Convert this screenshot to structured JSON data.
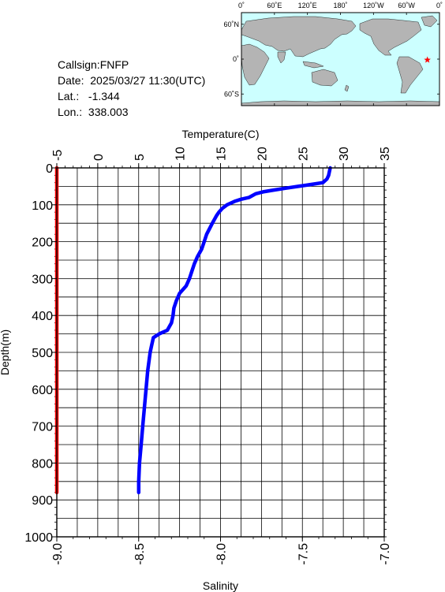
{
  "station": {
    "callsign_label": "Callsign:",
    "callsign": "FNFP",
    "date_label": "Date:",
    "date": "2025/03/27 11:30(UTC)",
    "lat_label": "Lat.:",
    "lat": "-1.344",
    "lon_label": "Lon.:",
    "lon": "338.003"
  },
  "map": {
    "lon_ticks": [
      "0˚",
      "60˚E",
      "120˚E",
      "180˚",
      "120˚W",
      "60˚W",
      "0˚"
    ],
    "lat_ticks": [
      "60˚N",
      "0˚",
      "60˚S"
    ],
    "ocean_color": "#ccffff",
    "land_color": "#b4b4b4",
    "marker_color": "#ff0000",
    "marker": {
      "lon": 338.003,
      "lat": -1.344
    }
  },
  "chart_data": {
    "type": "line",
    "xlabel_top": "Temperature(C)",
    "xlabel_bottom": "Salinity",
    "ylabel": "Depth(m)",
    "temp_lim": [
      -5,
      35
    ],
    "temp_ticks": [
      "-5",
      "0",
      "5",
      "10",
      "15",
      "20",
      "25",
      "30",
      "35"
    ],
    "sal_lim": [
      -9.0,
      -7.0
    ],
    "sal_ticks": [
      "-9.0",
      "-8.5",
      "-8.0",
      "-7.5",
      "-7.0"
    ],
    "depth_lim": [
      0,
      1000
    ],
    "depth_ticks": [
      "0",
      "100",
      "200",
      "300",
      "400",
      "500",
      "600",
      "700",
      "800",
      "900",
      "1000"
    ],
    "grid": true,
    "series": [
      {
        "quantity": "temperature",
        "color": "#0000ff",
        "depth": [
          0,
          10,
          20,
          30,
          40,
          45,
          50,
          55,
          60,
          65,
          70,
          80,
          85,
          90,
          100,
          110,
          120,
          130,
          150,
          180,
          200,
          220,
          240,
          260,
          280,
          300,
          320,
          340,
          360,
          380,
          400,
          420,
          440,
          450,
          460,
          480,
          500,
          550,
          600,
          650,
          700,
          750,
          800,
          850,
          880
        ],
        "temp": [
          28.4,
          28.3,
          28.2,
          28.0,
          27.5,
          26.0,
          24.5,
          23.0,
          21.5,
          20.2,
          19.3,
          18.5,
          17.5,
          16.8,
          15.8,
          15.2,
          14.8,
          14.5,
          14.0,
          13.3,
          13.0,
          12.7,
          12.2,
          11.8,
          11.5,
          11.2,
          10.8,
          10.0,
          9.6,
          9.3,
          9.2,
          9.0,
          8.5,
          7.5,
          6.8,
          6.6,
          6.4,
          6.1,
          5.9,
          5.7,
          5.5,
          5.3,
          5.1,
          5.0,
          5.0
        ]
      },
      {
        "quantity": "salinity",
        "color": "#ff0000",
        "depth": [
          0,
          880
        ],
        "salinity": [
          -9.0,
          -9.0
        ]
      }
    ]
  }
}
